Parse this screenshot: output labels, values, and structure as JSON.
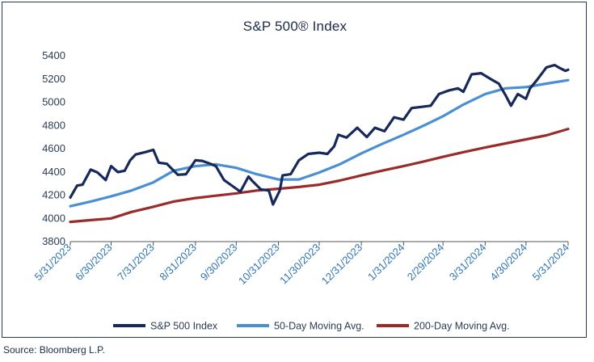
{
  "source": "Source: Bloomberg L.P.",
  "colors": {
    "sp500": "#16295a",
    "ma50": "#4a8fd4",
    "ma200": "#9a2b2b",
    "axis": "#555555"
  },
  "chart_data": {
    "type": "line",
    "title": "S&P 500® Index",
    "xlabel": "",
    "ylabel": "",
    "ylim": [
      3800,
      5400
    ],
    "yticks": [
      3800,
      4000,
      4200,
      4400,
      4600,
      4800,
      5000,
      5200,
      5400
    ],
    "xticks": [
      "5/31/2023",
      "6/30/2023",
      "7/31/2023",
      "8/31/2023",
      "9/30/2023",
      "10/31/2023",
      "11/30/2023",
      "12/31/2023",
      "1/31/2024",
      "2/29/2024",
      "3/31/2024",
      "4/30/2024",
      "5/31/2024"
    ],
    "grid": false,
    "legend_position": "bottom",
    "series": [
      {
        "name": "S&P 500 Index",
        "color": "#16295a",
        "x": [
          "2023-05-31",
          "2023-06-05",
          "2023-06-09",
          "2023-06-15",
          "2023-06-20",
          "2023-06-26",
          "2023-06-30",
          "2023-07-05",
          "2023-07-10",
          "2023-07-14",
          "2023-07-18",
          "2023-07-25",
          "2023-07-31",
          "2023-08-04",
          "2023-08-10",
          "2023-08-18",
          "2023-08-24",
          "2023-08-31",
          "2023-09-05",
          "2023-09-11",
          "2023-09-15",
          "2023-09-21",
          "2023-09-27",
          "2023-10-03",
          "2023-10-09",
          "2023-10-12",
          "2023-10-18",
          "2023-10-24",
          "2023-10-27",
          "2023-11-01",
          "2023-11-03",
          "2023-11-09",
          "2023-11-15",
          "2023-11-22",
          "2023-11-30",
          "2023-12-06",
          "2023-12-11",
          "2023-12-14",
          "2023-12-20",
          "2023-12-28",
          "2024-01-04",
          "2024-01-10",
          "2024-01-17",
          "2024-01-24",
          "2024-01-31",
          "2024-02-06",
          "2024-02-13",
          "2024-02-20",
          "2024-02-26",
          "2024-03-04",
          "2024-03-11",
          "2024-03-15",
          "2024-03-21",
          "2024-03-28",
          "2024-04-04",
          "2024-04-10",
          "2024-04-15",
          "2024-04-19",
          "2024-04-24",
          "2024-04-30",
          "2024-05-03",
          "2024-05-08",
          "2024-05-15",
          "2024-05-21",
          "2024-05-24",
          "2024-05-29",
          "2024-05-31"
        ],
        "y": [
          4180,
          4282,
          4290,
          4420,
          4395,
          4330,
          4450,
          4398,
          4410,
          4500,
          4550,
          4570,
          4590,
          4480,
          4470,
          4375,
          4380,
          4500,
          4495,
          4470,
          4450,
          4330,
          4280,
          4230,
          4360,
          4320,
          4250,
          4240,
          4120,
          4240,
          4370,
          4380,
          4500,
          4555,
          4565,
          4555,
          4620,
          4720,
          4695,
          4780,
          4700,
          4780,
          4750,
          4870,
          4850,
          4950,
          4960,
          4970,
          5070,
          5100,
          5120,
          5090,
          5240,
          5250,
          5200,
          5160,
          5060,
          4970,
          5070,
          5030,
          5120,
          5190,
          5300,
          5320,
          5300,
          5270,
          5280
        ]
      },
      {
        "name": "50-Day Moving Avg.",
        "color": "#4a8fd4",
        "x": [
          "2023-05-31",
          "2023-06-15",
          "2023-06-30",
          "2023-07-15",
          "2023-07-31",
          "2023-08-15",
          "2023-08-31",
          "2023-09-15",
          "2023-09-30",
          "2023-10-15",
          "2023-10-31",
          "2023-11-15",
          "2023-11-30",
          "2023-12-15",
          "2023-12-31",
          "2024-01-15",
          "2024-01-31",
          "2024-02-15",
          "2024-02-29",
          "2024-03-15",
          "2024-03-31",
          "2024-04-15",
          "2024-04-30",
          "2024-05-15",
          "2024-05-31"
        ],
        "y": [
          4105,
          4145,
          4190,
          4240,
          4310,
          4410,
          4450,
          4465,
          4435,
          4380,
          4335,
          4335,
          4395,
          4465,
          4560,
          4640,
          4720,
          4800,
          4880,
          4980,
          5070,
          5120,
          5130,
          5160,
          5190
        ]
      },
      {
        "name": "200-Day Moving Avg.",
        "color": "#9a2b2b",
        "x": [
          "2023-05-31",
          "2023-06-15",
          "2023-06-30",
          "2023-07-15",
          "2023-07-31",
          "2023-08-15",
          "2023-08-31",
          "2023-09-15",
          "2023-09-30",
          "2023-10-15",
          "2023-10-31",
          "2023-11-15",
          "2023-11-30",
          "2023-12-15",
          "2023-12-31",
          "2024-01-15",
          "2024-01-31",
          "2024-02-15",
          "2024-02-29",
          "2024-03-15",
          "2024-03-31",
          "2024-04-15",
          "2024-04-30",
          "2024-05-15",
          "2024-05-31"
        ],
        "y": [
          3970,
          3985,
          4000,
          4055,
          4100,
          4145,
          4175,
          4195,
          4215,
          4240,
          4255,
          4270,
          4290,
          4325,
          4370,
          4410,
          4450,
          4490,
          4530,
          4570,
          4610,
          4645,
          4680,
          4715,
          4770
        ]
      }
    ]
  }
}
